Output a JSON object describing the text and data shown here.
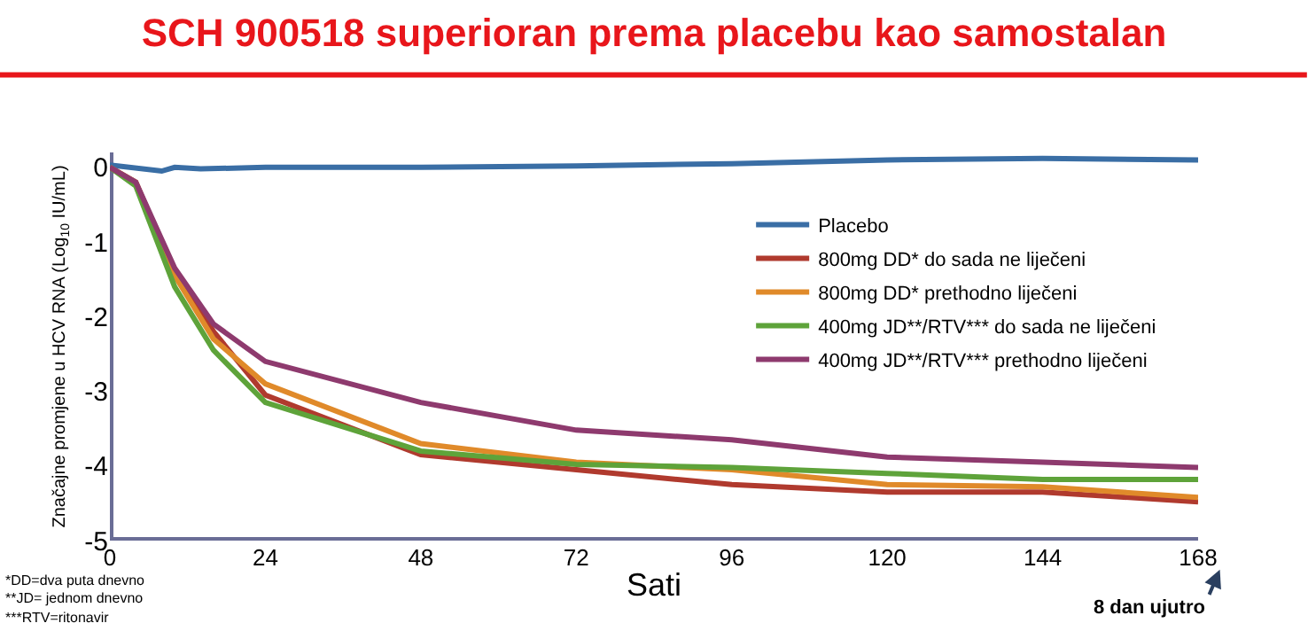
{
  "chart_data": {
    "type": "line",
    "title": "SCH 900518 superioran prema placebu kao samostalan",
    "xlabel": "Sati",
    "ylabel": "Značajne promjene u HCV RNA (Log$_{10}$ IU/mL)",
    "xlim": [
      0,
      168
    ],
    "xticks": [
      0,
      24,
      48,
      72,
      96,
      120,
      144,
      168
    ],
    "ylim": [
      -5,
      0.2
    ],
    "yticks": [
      -5,
      -4,
      -3,
      -2,
      -1,
      0
    ],
    "grid": false,
    "legend": "right",
    "marker": "none",
    "line_style": "solid",
    "annotations": [
      "*DD=dva puta dnevno",
      "**JD= jednom dnevno",
      "***RTV=ritonavir",
      "8 dan ujutro"
    ],
    "series": [
      {
        "name": "Placebo",
        "color": "#3a6ea5",
        "x": [
          0,
          8,
          10,
          14,
          24,
          48,
          72,
          96,
          120,
          144,
          168
        ],
        "values": [
          0.03,
          -0.05,
          0,
          -0.02,
          0,
          0,
          0.02,
          0.05,
          0.1,
          0.12,
          0.1
        ]
      },
      {
        "name": "800mg DD* do sada ne liječeni",
        "color": "#b03a2e",
        "x": [
          0,
          4,
          10,
          16,
          24,
          48,
          72,
          96,
          120,
          144,
          168
        ],
        "values": [
          0,
          -0.2,
          -1.4,
          -2.2,
          -3.05,
          -3.85,
          -4.05,
          -4.25,
          -4.35,
          -4.35,
          -4.48
        ]
      },
      {
        "name": "800mg DD* prethodno liječeni",
        "color": "#e08a2a",
        "x": [
          0,
          4,
          10,
          16,
          24,
          48,
          72,
          96,
          120,
          144,
          168
        ],
        "values": [
          0,
          -0.2,
          -1.45,
          -2.3,
          -2.9,
          -3.7,
          -3.95,
          -4.05,
          -4.25,
          -4.28,
          -4.42
        ]
      },
      {
        "name": "400mg JD**/RTV*** do sada ne liječeni",
        "color": "#5ea33a",
        "x": [
          0,
          4,
          10,
          16,
          24,
          48,
          72,
          96,
          120,
          144,
          168
        ],
        "values": [
          0,
          -0.25,
          -1.6,
          -2.45,
          -3.15,
          -3.8,
          -3.98,
          -4.02,
          -4.1,
          -4.18,
          -4.18
        ]
      },
      {
        "name": "400mg JD**/RTV*** prethodno liječeni",
        "color": "#8e3a6e",
        "x": [
          0,
          4,
          10,
          16,
          24,
          48,
          72,
          96,
          120,
          144,
          168
        ],
        "values": [
          0,
          -0.2,
          -1.35,
          -2.1,
          -2.6,
          -3.15,
          -3.52,
          -3.65,
          -3.88,
          -3.95,
          -4.02
        ]
      }
    ]
  }
}
